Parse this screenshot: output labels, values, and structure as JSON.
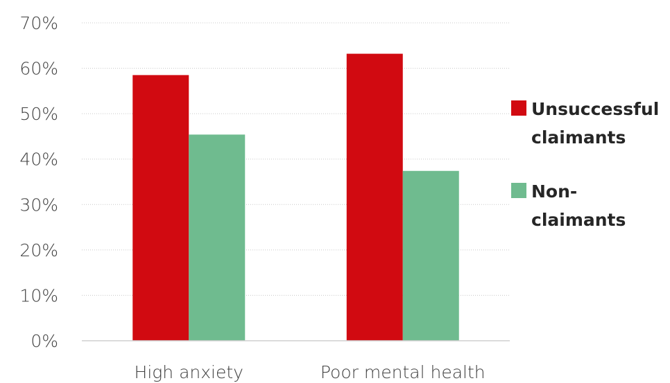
{
  "chart_data": {
    "type": "bar",
    "categories": [
      "High anxiety",
      "Poor mental health"
    ],
    "series": [
      {
        "name": "Unsuccessful claimants",
        "legend_lines": [
          "Unsuccessful",
          "claimants"
        ],
        "color": "#d10a11",
        "values": [
          58.5,
          63.2
        ]
      },
      {
        "name": "Non-claimants",
        "legend_lines": [
          "Non-",
          "claimants"
        ],
        "color": "#6fbb8f",
        "values": [
          45.4,
          37.4
        ]
      }
    ],
    "y_ticks": [
      "0%",
      "10%",
      "20%",
      "30%",
      "40%",
      "50%",
      "60%",
      "70%"
    ],
    "ylim": [
      0,
      70
    ],
    "grid": true,
    "legend_position": "right",
    "xlabel": "",
    "ylabel": ""
  }
}
